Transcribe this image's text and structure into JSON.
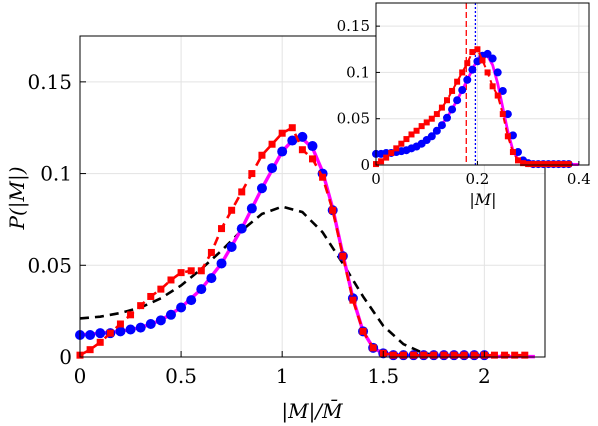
{
  "chart_data": [
    {
      "type": "line",
      "title": "",
      "xlabel": "|M|/M̄",
      "ylabel": "P(|M|)",
      "xlim": [
        0,
        2.3
      ],
      "ylim": [
        0,
        0.175
      ],
      "xticks": [
        "0",
        "0.5",
        "1",
        "1.5",
        "2"
      ],
      "yticks": [
        "0",
        "0.05",
        "0.1",
        "0.15"
      ],
      "xtick_values": [
        0,
        0.5,
        1,
        1.5,
        2
      ],
      "ytick_values": [
        0,
        0.05,
        0.1,
        0.15
      ],
      "grid": true,
      "series": [
        {
          "style": "dashed",
          "color": "#000000",
          "x": [
            0,
            0.1,
            0.2,
            0.3,
            0.4,
            0.5,
            0.6,
            0.7,
            0.8,
            0.9,
            1.0,
            1.1,
            1.2,
            1.3,
            1.4,
            1.5,
            1.6,
            1.7,
            1.8
          ],
          "y": [
            0.021,
            0.022,
            0.024,
            0.027,
            0.032,
            0.039,
            0.048,
            0.058,
            0.069,
            0.078,
            0.082,
            0.079,
            0.068,
            0.051,
            0.033,
            0.017,
            0.007,
            0.002,
            0.0005
          ]
        },
        {
          "style": "solid",
          "color": "#ff00ff",
          "x": [
            0,
            0.1,
            0.2,
            0.3,
            0.4,
            0.5,
            0.6,
            0.7,
            0.8,
            0.9,
            1.0,
            1.05,
            1.1,
            1.15,
            1.2,
            1.25,
            1.3,
            1.35,
            1.4,
            1.45,
            1.5,
            1.6,
            1.8,
            2.0,
            2.25
          ],
          "y": [
            0.012,
            0.013,
            0.014,
            0.016,
            0.02,
            0.027,
            0.037,
            0.051,
            0.07,
            0.092,
            0.112,
            0.118,
            0.119,
            0.114,
            0.101,
            0.081,
            0.056,
            0.032,
            0.014,
            0.005,
            0.002,
            0.001,
            0.0005,
            0.0003,
            0.0002
          ]
        },
        {
          "style": "markers-circle",
          "color": "#0000ff",
          "x": [
            0,
            0.05,
            0.1,
            0.15,
            0.2,
            0.25,
            0.3,
            0.35,
            0.4,
            0.45,
            0.5,
            0.55,
            0.6,
            0.65,
            0.7,
            0.75,
            0.8,
            0.85,
            0.9,
            0.95,
            1.0,
            1.05,
            1.1,
            1.15,
            1.2,
            1.25,
            1.3,
            1.35,
            1.4,
            1.45,
            1.5,
            1.55,
            1.6,
            1.65,
            1.7,
            1.75,
            1.8,
            1.85,
            1.9,
            1.95,
            2.0
          ],
          "y": [
            0.012,
            0.012,
            0.013,
            0.013,
            0.014,
            0.015,
            0.016,
            0.018,
            0.02,
            0.023,
            0.027,
            0.031,
            0.037,
            0.043,
            0.051,
            0.06,
            0.07,
            0.081,
            0.092,
            0.103,
            0.112,
            0.118,
            0.12,
            0.115,
            0.1,
            0.08,
            0.055,
            0.032,
            0.014,
            0.005,
            0.002,
            0.001,
            0.001,
            0.001,
            0.001,
            0.001,
            0.001,
            0.001,
            0.001,
            0.001,
            0.001
          ]
        },
        {
          "style": "dashed-square",
          "color": "#ff0000",
          "x": [
            0,
            0.05,
            0.1,
            0.15,
            0.2,
            0.25,
            0.3,
            0.35,
            0.4,
            0.45,
            0.5,
            0.55,
            0.6,
            0.65,
            0.7,
            0.75,
            0.8,
            0.85,
            0.9,
            0.95,
            1.0,
            1.05,
            1.1,
            1.15,
            1.2,
            1.25,
            1.3,
            1.35,
            1.4,
            1.45,
            1.5,
            1.55,
            1.6,
            1.65,
            1.7,
            1.75,
            1.8,
            1.85,
            1.9,
            1.95,
            2.0,
            2.05,
            2.1,
            2.15,
            2.2
          ],
          "y": [
            0.001,
            0.004,
            0.008,
            0.013,
            0.018,
            0.023,
            0.028,
            0.033,
            0.037,
            0.042,
            0.046,
            0.047,
            0.047,
            0.057,
            0.07,
            0.08,
            0.09,
            0.1,
            0.11,
            0.116,
            0.122,
            0.125,
            0.113,
            0.108,
            0.098,
            0.08,
            0.055,
            0.031,
            0.014,
            0.005,
            0.002,
            0.001,
            0.001,
            0.001,
            0.001,
            0.001,
            0.001,
            0.001,
            0.001,
            0.001,
            0.001,
            0.001,
            0.001,
            0.001,
            0.001
          ]
        }
      ]
    },
    {
      "type": "line",
      "title": "",
      "xlabel": "|M|",
      "ylabel": "",
      "xlim": [
        0,
        0.42
      ],
      "ylim": [
        0,
        0.175
      ],
      "xticks": [
        "0",
        "0.2",
        "0.4"
      ],
      "yticks": [
        "0",
        "0.05",
        "0.1",
        "0.15"
      ],
      "xtick_values": [
        0,
        0.2,
        0.4
      ],
      "ytick_values": [
        0,
        0.05,
        0.1,
        0.15
      ],
      "grid": true,
      "vlines": [
        {
          "x": 0.178,
          "color": "#ff0000",
          "style": "dashed"
        },
        {
          "x": 0.196,
          "color": "#0000ff",
          "style": "dotted"
        }
      ],
      "series": [
        {
          "style": "solid",
          "color": "#ff00ff",
          "x": [
            0,
            0.02,
            0.04,
            0.06,
            0.08,
            0.1,
            0.12,
            0.14,
            0.16,
            0.18,
            0.19,
            0.2,
            0.21,
            0.22,
            0.23,
            0.24,
            0.25,
            0.26,
            0.27,
            0.28,
            0.3,
            0.35,
            0.4
          ],
          "y": [
            0.012,
            0.013,
            0.014,
            0.016,
            0.02,
            0.027,
            0.037,
            0.051,
            0.07,
            0.092,
            0.103,
            0.114,
            0.12,
            0.118,
            0.108,
            0.088,
            0.062,
            0.036,
            0.016,
            0.006,
            0.002,
            0.001,
            0.0005
          ]
        },
        {
          "style": "markers-circle",
          "color": "#0000ff",
          "x": [
            0,
            0.01,
            0.02,
            0.03,
            0.04,
            0.05,
            0.06,
            0.07,
            0.08,
            0.09,
            0.1,
            0.11,
            0.12,
            0.13,
            0.14,
            0.15,
            0.16,
            0.17,
            0.18,
            0.19,
            0.2,
            0.21,
            0.22,
            0.23,
            0.24,
            0.25,
            0.26,
            0.27,
            0.28,
            0.29,
            0.3,
            0.31,
            0.32,
            0.33,
            0.34,
            0.35,
            0.36,
            0.37,
            0.38
          ],
          "y": [
            0.012,
            0.012,
            0.013,
            0.013,
            0.014,
            0.015,
            0.016,
            0.018,
            0.02,
            0.023,
            0.027,
            0.031,
            0.037,
            0.043,
            0.051,
            0.06,
            0.07,
            0.081,
            0.092,
            0.103,
            0.112,
            0.118,
            0.12,
            0.115,
            0.1,
            0.08,
            0.055,
            0.032,
            0.014,
            0.005,
            0.002,
            0.001,
            0.001,
            0.001,
            0.001,
            0.001,
            0.001,
            0.001,
            0.001
          ]
        },
        {
          "style": "dashed-square",
          "color": "#ff0000",
          "x": [
            0,
            0.01,
            0.02,
            0.03,
            0.04,
            0.05,
            0.06,
            0.07,
            0.08,
            0.09,
            0.1,
            0.11,
            0.12,
            0.13,
            0.14,
            0.15,
            0.16,
            0.17,
            0.18,
            0.19,
            0.2,
            0.21,
            0.22,
            0.23,
            0.24,
            0.25,
            0.26,
            0.27,
            0.28,
            0.29,
            0.3,
            0.31,
            0.32,
            0.33,
            0.34,
            0.35,
            0.36,
            0.37,
            0.38
          ],
          "y": [
            0.001,
            0.004,
            0.008,
            0.013,
            0.018,
            0.023,
            0.028,
            0.033,
            0.037,
            0.042,
            0.046,
            0.05,
            0.055,
            0.062,
            0.07,
            0.08,
            0.09,
            0.1,
            0.11,
            0.122,
            0.125,
            0.113,
            0.1,
            0.085,
            0.075,
            0.055,
            0.031,
            0.014,
            0.005,
            0.002,
            0.001,
            0.001,
            0.001,
            0.001,
            0.001,
            0.001,
            0.001,
            0.001,
            0.001
          ]
        }
      ]
    }
  ]
}
